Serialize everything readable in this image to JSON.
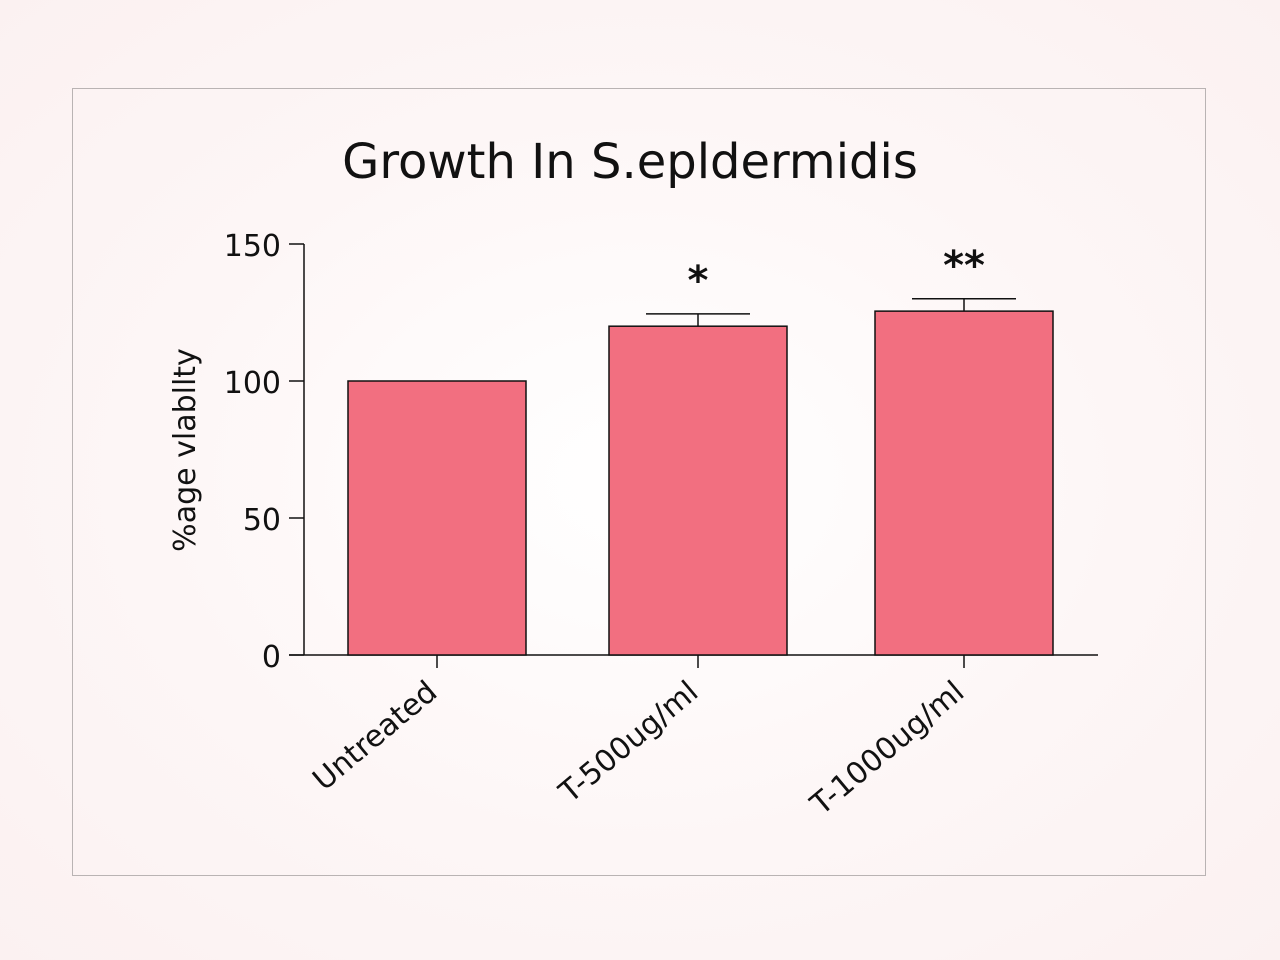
{
  "chart_data": {
    "type": "bar",
    "title": "Growth In S.epldermidis",
    "ylabel": "%age vlabllty",
    "xlabel": "",
    "categories": [
      "Untreated",
      "T-500ug/ml",
      "T-1000ug/ml"
    ],
    "values": [
      100,
      120,
      125.5
    ],
    "error": [
      0,
      4.5,
      4.5
    ],
    "significance": [
      "",
      "*",
      "**"
    ],
    "ylim": [
      0,
      150
    ],
    "yticks": [
      0,
      50,
      100,
      150
    ],
    "grid": false,
    "bar_color": "#f26f80",
    "bar_edge_color": "#111111"
  }
}
